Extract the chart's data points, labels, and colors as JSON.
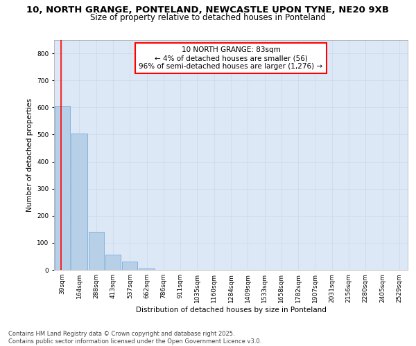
{
  "title_line1": "10, NORTH GRANGE, PONTELAND, NEWCASTLE UPON TYNE, NE20 9XB",
  "title_line2": "Size of property relative to detached houses in Ponteland",
  "xlabel": "Distribution of detached houses by size in Ponteland",
  "ylabel": "Number of detached properties",
  "categories": [
    "39sqm",
    "164sqm",
    "288sqm",
    "413sqm",
    "537sqm",
    "662sqm",
    "786sqm",
    "911sqm",
    "1035sqm",
    "1160sqm",
    "1284sqm",
    "1409sqm",
    "1533sqm",
    "1658sqm",
    "1782sqm",
    "1907sqm",
    "2031sqm",
    "2156sqm",
    "2280sqm",
    "2405sqm",
    "2529sqm"
  ],
  "values": [
    607,
    503,
    140,
    57,
    30,
    5,
    1,
    0,
    0,
    0,
    0,
    0,
    0,
    0,
    0,
    0,
    0,
    0,
    0,
    0,
    0
  ],
  "bar_color": "#b8cfe8",
  "bar_edge_color": "#7aadd4",
  "annotation_text": "10 NORTH GRANGE: 83sqm\n← 4% of detached houses are smaller (56)\n96% of semi-detached houses are larger (1,276) →",
  "annotation_box_color": "white",
  "annotation_box_edge_color": "red",
  "ylim": [
    0,
    850
  ],
  "yticks": [
    0,
    100,
    200,
    300,
    400,
    500,
    600,
    700,
    800
  ],
  "grid_color": "#c8d8ec",
  "bg_color": "#dce8f5",
  "footer_line1": "Contains HM Land Registry data © Crown copyright and database right 2025.",
  "footer_line2": "Contains public sector information licensed under the Open Government Licence v3.0.",
  "title_fontsize": 9.5,
  "subtitle_fontsize": 8.5,
  "tick_fontsize": 6.5,
  "label_fontsize": 7.5,
  "footer_fontsize": 6.0,
  "annotation_fontsize": 7.5
}
